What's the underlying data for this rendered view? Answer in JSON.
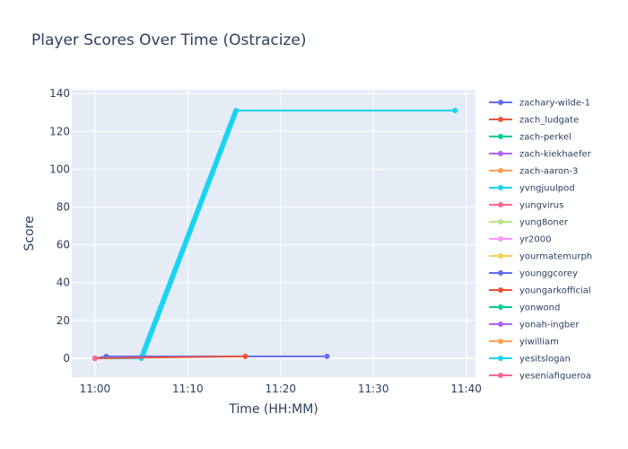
{
  "chart_data": {
    "type": "line",
    "title": "Player Scores Over Time (Ostracize)",
    "xlabel": "Time (HH:MM)",
    "ylabel": "Score",
    "x_unit": "minutes after 11:00",
    "xlim": [
      -2.5,
      41
    ],
    "ylim": [
      -10,
      142
    ],
    "x_ticks": [
      0,
      10,
      20,
      30,
      40
    ],
    "x_tick_labels": [
      "11:00",
      "11:10",
      "11:20",
      "11:30",
      "11:40"
    ],
    "y_ticks": [
      0,
      20,
      40,
      60,
      80,
      100,
      120,
      140
    ],
    "y_tick_labels": [
      "0",
      "20",
      "40",
      "60",
      "80",
      "100",
      "120",
      "140"
    ],
    "grid": true,
    "legend_position": "right",
    "series": [
      {
        "name": "zachary-wilde-1",
        "color": "#636efa",
        "x": [
          0,
          1.2,
          25
        ],
        "y": [
          0,
          1,
          1
        ]
      },
      {
        "name": "zach_ludgate",
        "color": "#ef553b",
        "x": [
          0,
          16.2
        ],
        "y": [
          0,
          1
        ]
      },
      {
        "name": "zach-perkel",
        "color": "#00cc96",
        "x": [
          0
        ],
        "y": [
          0
        ]
      },
      {
        "name": "zach-kiekhaefer",
        "color": "#ab63fa",
        "x": [
          0
        ],
        "y": [
          0
        ]
      },
      {
        "name": "zach-aaron-3",
        "color": "#ffa15a",
        "x": [
          0
        ],
        "y": [
          0
        ]
      },
      {
        "name": "yvngjuulpod",
        "color": "#19d3f3",
        "x": [
          0
        ],
        "y": [
          0
        ]
      },
      {
        "name": "yungvirus",
        "color": "#ff6692",
        "x": [
          0
        ],
        "y": [
          0
        ]
      },
      {
        "name": "yung8oner",
        "color": "#b6e880",
        "x": [
          0
        ],
        "y": [
          0
        ]
      },
      {
        "name": "yr2000",
        "color": "#ff97ff",
        "x": [
          0
        ],
        "y": [
          0
        ]
      },
      {
        "name": "yourmatemurph",
        "color": "#fecb52",
        "x": [
          0
        ],
        "y": [
          0
        ]
      },
      {
        "name": "younggcorey",
        "color": "#636efa",
        "x": [
          0
        ],
        "y": [
          0
        ]
      },
      {
        "name": "youngarkofficial",
        "color": "#ef553b",
        "x": [
          0
        ],
        "y": [
          0
        ]
      },
      {
        "name": "yonwond",
        "color": "#00cc96",
        "x": [
          0
        ],
        "y": [
          0
        ]
      },
      {
        "name": "yonah-ingber",
        "color": "#ab63fa",
        "x": [
          0
        ],
        "y": [
          0
        ]
      },
      {
        "name": "yiwilliam",
        "color": "#ffa15a",
        "x": [
          0
        ],
        "y": [
          0
        ]
      },
      {
        "name": "yesitslogan",
        "color": "#19d3f3",
        "x": [
          0,
          5,
          15.2,
          38.8
        ],
        "y": [
          0,
          0,
          131,
          131
        ],
        "dense_segment": [
          1,
          2
        ]
      },
      {
        "name": "yeseniafigueroa",
        "color": "#ff6692",
        "x": [
          0
        ],
        "y": [
          0
        ]
      }
    ]
  }
}
